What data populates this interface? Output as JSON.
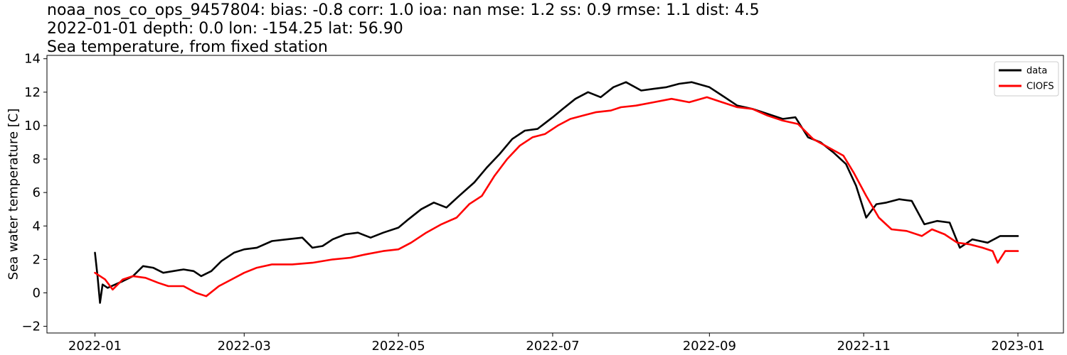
{
  "chart_data": {
    "type": "line",
    "title_lines": [
      "noaa_nos_co_ops_9457804: bias: -0.8  corr: 1.0  ioa: nan  mse: 1.2  ss: 0.9  rmse: 1.1  dist: 4.5",
      "2022-01-01 depth: 0.0 lon: -154.25 lat: 56.90",
      "Sea temperature, from fixed station"
    ],
    "xlabel": "",
    "ylabel": "Sea water temperature [C]",
    "xlim": [
      "2021-12-13",
      "2023-01-19"
    ],
    "ylim": [
      -2.4,
      14.2
    ],
    "x_ticks": [
      "2022-01",
      "2022-03",
      "2022-05",
      "2022-07",
      "2022-09",
      "2022-11",
      "2023-01"
    ],
    "y_ticks": [
      -2,
      0,
      2,
      4,
      6,
      8,
      10,
      12,
      14
    ],
    "legend_position": "upper right",
    "series": [
      {
        "name": "data",
        "color": "#000000",
        "points": [
          [
            "2022-01-01",
            2.4
          ],
          [
            "2022-01-02",
            1.0
          ],
          [
            "2022-01-03",
            -0.6
          ],
          [
            "2022-01-04",
            0.5
          ],
          [
            "2022-01-06",
            0.3
          ],
          [
            "2022-01-09",
            0.5
          ],
          [
            "2022-01-12",
            0.7
          ],
          [
            "2022-01-16",
            1.0
          ],
          [
            "2022-01-20",
            1.6
          ],
          [
            "2022-01-24",
            1.5
          ],
          [
            "2022-01-28",
            1.2
          ],
          [
            "2022-02-01",
            1.3
          ],
          [
            "2022-02-05",
            1.4
          ],
          [
            "2022-02-09",
            1.3
          ],
          [
            "2022-02-12",
            1.0
          ],
          [
            "2022-02-16",
            1.3
          ],
          [
            "2022-02-20",
            1.9
          ],
          [
            "2022-02-25",
            2.4
          ],
          [
            "2022-03-01",
            2.6
          ],
          [
            "2022-03-06",
            2.7
          ],
          [
            "2022-03-12",
            3.1
          ],
          [
            "2022-03-18",
            3.2
          ],
          [
            "2022-03-24",
            3.3
          ],
          [
            "2022-03-28",
            2.7
          ],
          [
            "2022-04-01",
            2.8
          ],
          [
            "2022-04-05",
            3.2
          ],
          [
            "2022-04-10",
            3.5
          ],
          [
            "2022-04-15",
            3.6
          ],
          [
            "2022-04-20",
            3.3
          ],
          [
            "2022-04-25",
            3.6
          ],
          [
            "2022-05-01",
            3.9
          ],
          [
            "2022-05-05",
            4.4
          ],
          [
            "2022-05-10",
            5.0
          ],
          [
            "2022-05-15",
            5.4
          ],
          [
            "2022-05-20",
            5.1
          ],
          [
            "2022-05-25",
            5.8
          ],
          [
            "2022-05-31",
            6.6
          ],
          [
            "2022-06-05",
            7.5
          ],
          [
            "2022-06-10",
            8.3
          ],
          [
            "2022-06-15",
            9.2
          ],
          [
            "2022-06-20",
            9.7
          ],
          [
            "2022-06-25",
            9.8
          ],
          [
            "2022-07-01",
            10.5
          ],
          [
            "2022-07-05",
            11.0
          ],
          [
            "2022-07-10",
            11.6
          ],
          [
            "2022-07-15",
            12.0
          ],
          [
            "2022-07-20",
            11.7
          ],
          [
            "2022-07-25",
            12.3
          ],
          [
            "2022-07-30",
            12.6
          ],
          [
            "2022-08-05",
            12.1
          ],
          [
            "2022-08-10",
            12.2
          ],
          [
            "2022-08-15",
            12.3
          ],
          [
            "2022-08-20",
            12.5
          ],
          [
            "2022-08-25",
            12.6
          ],
          [
            "2022-09-01",
            12.3
          ],
          [
            "2022-09-06",
            11.8
          ],
          [
            "2022-09-12",
            11.2
          ],
          [
            "2022-09-18",
            11.0
          ],
          [
            "2022-09-24",
            10.7
          ],
          [
            "2022-09-30",
            10.4
          ],
          [
            "2022-10-05",
            10.5
          ],
          [
            "2022-10-10",
            9.3
          ],
          [
            "2022-10-15",
            9.0
          ],
          [
            "2022-10-20",
            8.4
          ],
          [
            "2022-10-25",
            7.7
          ],
          [
            "2022-10-29",
            6.4
          ],
          [
            "2022-11-02",
            4.5
          ],
          [
            "2022-11-06",
            5.3
          ],
          [
            "2022-11-10",
            5.4
          ],
          [
            "2022-11-15",
            5.6
          ],
          [
            "2022-11-20",
            5.5
          ],
          [
            "2022-11-25",
            4.1
          ],
          [
            "2022-11-30",
            4.3
          ],
          [
            "2022-12-05",
            4.2
          ],
          [
            "2022-12-09",
            2.7
          ],
          [
            "2022-12-14",
            3.2
          ],
          [
            "2022-12-20",
            3.0
          ],
          [
            "2022-12-25",
            3.4
          ],
          [
            "2023-01-01",
            3.4
          ]
        ]
      },
      {
        "name": "CIOFS",
        "color": "#ff0000",
        "points": [
          [
            "2022-01-01",
            1.2
          ],
          [
            "2022-01-05",
            0.8
          ],
          [
            "2022-01-08",
            0.2
          ],
          [
            "2022-01-12",
            0.8
          ],
          [
            "2022-01-16",
            1.0
          ],
          [
            "2022-01-21",
            0.9
          ],
          [
            "2022-01-26",
            0.6
          ],
          [
            "2022-01-30",
            0.4
          ],
          [
            "2022-02-05",
            0.4
          ],
          [
            "2022-02-10",
            0.0
          ],
          [
            "2022-02-14",
            -0.2
          ],
          [
            "2022-02-19",
            0.4
          ],
          [
            "2022-02-24",
            0.8
          ],
          [
            "2022-03-01",
            1.2
          ],
          [
            "2022-03-06",
            1.5
          ],
          [
            "2022-03-12",
            1.7
          ],
          [
            "2022-03-20",
            1.7
          ],
          [
            "2022-03-28",
            1.8
          ],
          [
            "2022-04-05",
            2.0
          ],
          [
            "2022-04-12",
            2.1
          ],
          [
            "2022-04-18",
            2.3
          ],
          [
            "2022-04-25",
            2.5
          ],
          [
            "2022-05-01",
            2.6
          ],
          [
            "2022-05-06",
            3.0
          ],
          [
            "2022-05-12",
            3.6
          ],
          [
            "2022-05-18",
            4.1
          ],
          [
            "2022-05-24",
            4.5
          ],
          [
            "2022-05-29",
            5.3
          ],
          [
            "2022-06-03",
            5.8
          ],
          [
            "2022-06-08",
            7.0
          ],
          [
            "2022-06-13",
            8.0
          ],
          [
            "2022-06-18",
            8.8
          ],
          [
            "2022-06-23",
            9.3
          ],
          [
            "2022-06-28",
            9.5
          ],
          [
            "2022-07-03",
            10.0
          ],
          [
            "2022-07-08",
            10.4
          ],
          [
            "2022-07-13",
            10.6
          ],
          [
            "2022-07-18",
            10.8
          ],
          [
            "2022-07-24",
            10.9
          ],
          [
            "2022-07-28",
            11.1
          ],
          [
            "2022-08-03",
            11.2
          ],
          [
            "2022-08-10",
            11.4
          ],
          [
            "2022-08-17",
            11.6
          ],
          [
            "2022-08-24",
            11.4
          ],
          [
            "2022-08-31",
            11.7
          ],
          [
            "2022-09-06",
            11.4
          ],
          [
            "2022-09-12",
            11.1
          ],
          [
            "2022-09-18",
            11.0
          ],
          [
            "2022-09-24",
            10.6
          ],
          [
            "2022-09-30",
            10.3
          ],
          [
            "2022-10-06",
            10.1
          ],
          [
            "2022-10-12",
            9.2
          ],
          [
            "2022-10-18",
            8.7
          ],
          [
            "2022-10-24",
            8.2
          ],
          [
            "2022-10-28",
            7.2
          ],
          [
            "2022-11-02",
            5.8
          ],
          [
            "2022-11-07",
            4.5
          ],
          [
            "2022-11-12",
            3.8
          ],
          [
            "2022-11-18",
            3.7
          ],
          [
            "2022-11-24",
            3.4
          ],
          [
            "2022-11-28",
            3.8
          ],
          [
            "2022-12-03",
            3.5
          ],
          [
            "2022-12-08",
            3.0
          ],
          [
            "2022-12-13",
            2.9
          ],
          [
            "2022-12-18",
            2.7
          ],
          [
            "2022-12-22",
            2.5
          ],
          [
            "2022-12-24",
            1.8
          ],
          [
            "2022-12-27",
            2.5
          ],
          [
            "2023-01-01",
            2.5
          ]
        ]
      }
    ]
  }
}
